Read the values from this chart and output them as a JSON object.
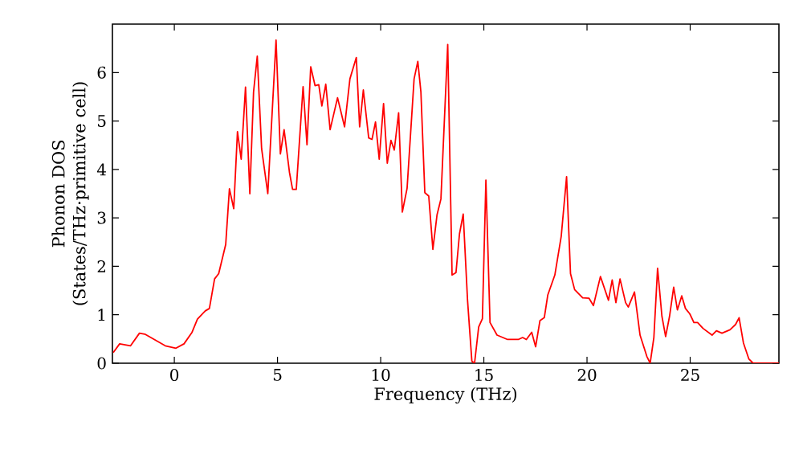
{
  "chart_data": {
    "type": "line",
    "xlabel": "Frequency (THz)",
    "ylabel": "Phonon DOS (States/THz·primitive cell)",
    "xlim": [
      -3,
      29.3
    ],
    "ylim": [
      0,
      7
    ],
    "xticks": [
      0,
      5,
      10,
      15,
      20,
      25
    ],
    "yticks": [
      0,
      1,
      2,
      3,
      4,
      5,
      6
    ],
    "marker": "none",
    "line_style": "solid",
    "series": [
      {
        "color": "#ff0000",
        "x": [
          -2.96,
          -2.65,
          -2.12,
          -1.69,
          -1.43,
          -0.44,
          0.08,
          0.47,
          0.86,
          1.12,
          1.5,
          1.7,
          1.95,
          2.15,
          2.49,
          2.67,
          2.88,
          3.06,
          3.24,
          3.45,
          3.66,
          3.84,
          4.02,
          4.23,
          4.53,
          4.93,
          5.14,
          5.32,
          5.58,
          5.73,
          5.91,
          6.24,
          6.43,
          6.61,
          6.82,
          7.0,
          7.15,
          7.34,
          7.55,
          7.91,
          8.25,
          8.51,
          8.82,
          8.98,
          9.16,
          9.42,
          9.58,
          9.75,
          9.93,
          10.14,
          10.32,
          10.5,
          10.66,
          10.87,
          11.05,
          11.28,
          11.62,
          11.8,
          11.95,
          12.14,
          12.33,
          12.53,
          12.73,
          12.92,
          13.25,
          13.46,
          13.65,
          13.82,
          14.0,
          14.21,
          14.42,
          14.55,
          14.75,
          14.93,
          15.1,
          15.3,
          15.64,
          16.15,
          16.67,
          16.88,
          17.06,
          17.32,
          17.51,
          17.72,
          17.93,
          18.1,
          18.44,
          18.75,
          19.01,
          19.2,
          19.4,
          19.79,
          20.1,
          20.31,
          20.65,
          21.04,
          21.22,
          21.4,
          21.6,
          21.87,
          22.0,
          22.3,
          22.57,
          22.9,
          23.06,
          23.24,
          23.42,
          23.63,
          23.81,
          24.0,
          24.2,
          24.38,
          24.59,
          24.77,
          24.98,
          25.18,
          25.36,
          25.62,
          26.06,
          26.27,
          26.54,
          26.93,
          27.2,
          27.37,
          27.58,
          27.84,
          28.05,
          29.3
        ],
        "values": [
          0.22,
          0.4,
          0.36,
          0.62,
          0.6,
          0.36,
          0.31,
          0.4,
          0.64,
          0.91,
          1.08,
          1.13,
          1.74,
          1.85,
          2.45,
          3.6,
          3.19,
          4.78,
          4.21,
          5.7,
          3.5,
          5.6,
          6.34,
          4.43,
          3.5,
          6.67,
          4.32,
          4.82,
          3.94,
          3.59,
          3.59,
          5.71,
          4.51,
          6.12,
          5.73,
          5.75,
          5.31,
          5.76,
          4.82,
          5.48,
          4.88,
          5.87,
          6.31,
          4.88,
          5.64,
          4.65,
          4.62,
          4.98,
          4.21,
          5.36,
          4.13,
          4.6,
          4.4,
          5.17,
          3.12,
          3.61,
          5.87,
          6.23,
          5.6,
          3.52,
          3.45,
          2.35,
          3.06,
          3.39,
          6.58,
          1.82,
          1.87,
          2.67,
          3.08,
          1.3,
          0.04,
          0.0,
          0.75,
          0.92,
          3.78,
          0.84,
          0.58,
          0.49,
          0.49,
          0.53,
          0.49,
          0.64,
          0.34,
          0.88,
          0.94,
          1.41,
          1.82,
          2.62,
          3.85,
          1.85,
          1.52,
          1.35,
          1.34,
          1.19,
          1.79,
          1.3,
          1.72,
          1.25,
          1.74,
          1.25,
          1.16,
          1.47,
          0.58,
          0.14,
          0.0,
          0.53,
          1.96,
          0.97,
          0.55,
          0.97,
          1.57,
          1.1,
          1.39,
          1.13,
          1.02,
          0.84,
          0.84,
          0.72,
          0.58,
          0.67,
          0.62,
          0.69,
          0.8,
          0.94,
          0.42,
          0.09,
          0.0,
          0.0
        ]
      }
    ]
  }
}
